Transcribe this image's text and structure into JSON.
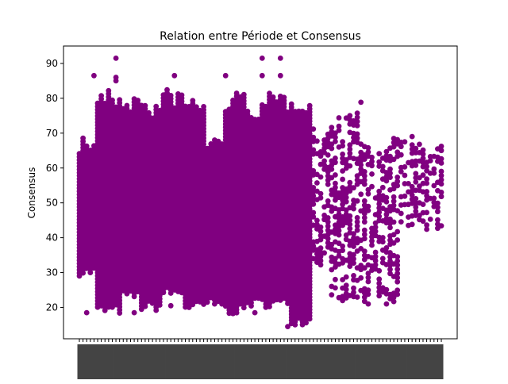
{
  "chart_data": {
    "type": "scatter",
    "title": "Relation entre Période et Consensus",
    "xlabel": "",
    "ylabel": "Consensus",
    "marker_color": "#800080",
    "ylim": [
      11,
      95
    ],
    "yticks": [
      20,
      30,
      40,
      50,
      60,
      70,
      80,
      90
    ],
    "grid": false,
    "legend": "none",
    "x_categories_count": 100,
    "x_categories_note": "Crowded rotated date labels along the x axis, unreadable at this resolution.",
    "series": [
      {
        "groups": [
          {
            "from": 0,
            "to": 4,
            "min": 29,
            "max": 70
          },
          {
            "from": 5,
            "to": 11,
            "min": 18,
            "max": 83
          },
          {
            "from": 12,
            "to": 16,
            "min": 22,
            "max": 82
          },
          {
            "from": 17,
            "to": 22,
            "min": 19,
            "max": 80
          },
          {
            "from": 23,
            "to": 28,
            "min": 23,
            "max": 83
          },
          {
            "from": 29,
            "to": 34,
            "min": 19,
            "max": 81
          },
          {
            "from": 35,
            "to": 39,
            "min": 20,
            "max": 70
          },
          {
            "from": 40,
            "to": 45,
            "min": 18,
            "max": 82
          },
          {
            "from": 46,
            "to": 51,
            "min": 20,
            "max": 80
          },
          {
            "from": 52,
            "to": 57,
            "min": 20,
            "max": 82
          },
          {
            "from": 58,
            "to": 63,
            "min": 15,
            "max": 82
          },
          {
            "from": 64,
            "to": 68,
            "min": 32,
            "max": 75
          },
          {
            "from": 69,
            "to": 72,
            "min": 21,
            "max": 75
          },
          {
            "from": 73,
            "to": 77,
            "min": 21,
            "max": 80
          },
          {
            "from": 78,
            "to": 82,
            "min": 21,
            "max": 68
          },
          {
            "from": 83,
            "to": 87,
            "min": 21,
            "max": 72
          },
          {
            "from": 88,
            "to": 99,
            "min": 42,
            "max": 70
          }
        ],
        "outliers": [
          {
            "x": 10,
            "y": 91.5
          },
          {
            "x": 10,
            "y": 86
          },
          {
            "x": 10,
            "y": 85
          },
          {
            "x": 4,
            "y": 86.5
          },
          {
            "x": 26,
            "y": 86.5
          },
          {
            "x": 40,
            "y": 86.5
          },
          {
            "x": 50,
            "y": 91.5
          },
          {
            "x": 50,
            "y": 86.5
          },
          {
            "x": 55,
            "y": 91.5
          },
          {
            "x": 55,
            "y": 86.5
          },
          {
            "x": 57,
            "y": 14.5
          },
          {
            "x": 2,
            "y": 18.5
          },
          {
            "x": 15,
            "y": 18.5
          },
          {
            "x": 25,
            "y": 20.5
          },
          {
            "x": 37,
            "y": 21
          },
          {
            "x": 48,
            "y": 18.5
          },
          {
            "x": 60,
            "y": 18.5
          },
          {
            "x": 79,
            "y": 21
          },
          {
            "x": 84,
            "y": 21
          }
        ]
      }
    ]
  }
}
